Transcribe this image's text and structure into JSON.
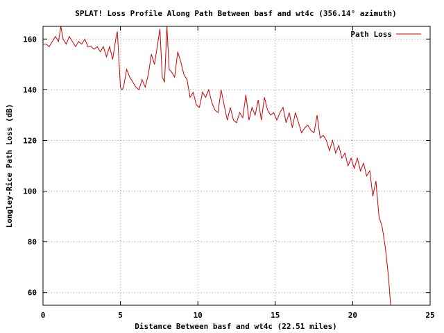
{
  "chart_data": {
    "type": "line",
    "title": "SPLAT! Loss Profile Along Path Between basf and wt4c (356.14° azimuth)",
    "xlabel": "Distance Between basf and wt4c (22.51 miles)",
    "ylabel": "Longley-Rice Path Loss (dB)",
    "xlim": [
      0,
      25
    ],
    "ylim": [
      55,
      165
    ],
    "xticks": [
      0,
      5,
      10,
      15,
      20,
      25
    ],
    "yticks": [
      60,
      80,
      100,
      120,
      140,
      160
    ],
    "xtick_labels": [
      "0",
      "5",
      "10",
      "15",
      "20",
      "25"
    ],
    "ytick_labels": [
      "60",
      "80",
      "100",
      "120",
      "140",
      "160"
    ],
    "grid": true,
    "legend_position": "top-right",
    "series": [
      {
        "name": "Path Loss",
        "color": "#cc0000",
        "x": [
          0.0,
          0.2,
          0.4,
          0.6,
          0.8,
          1.0,
          1.15,
          1.3,
          1.5,
          1.7,
          1.9,
          2.1,
          2.3,
          2.5,
          2.7,
          2.9,
          3.1,
          3.3,
          3.5,
          3.7,
          3.9,
          4.1,
          4.3,
          4.5,
          4.7,
          4.8,
          4.9,
          5.0,
          5.1,
          5.2,
          5.4,
          5.6,
          5.8,
          6.0,
          6.2,
          6.4,
          6.6,
          6.8,
          7.0,
          7.2,
          7.4,
          7.55,
          7.7,
          7.85,
          8.0,
          8.15,
          8.3,
          8.5,
          8.7,
          8.9,
          9.1,
          9.3,
          9.5,
          9.7,
          9.9,
          10.1,
          10.3,
          10.5,
          10.7,
          10.9,
          11.1,
          11.3,
          11.5,
          11.7,
          11.9,
          12.1,
          12.3,
          12.5,
          12.7,
          12.9,
          13.1,
          13.3,
          13.5,
          13.7,
          13.9,
          14.1,
          14.3,
          14.5,
          14.7,
          14.9,
          15.1,
          15.3,
          15.5,
          15.7,
          15.9,
          16.1,
          16.3,
          16.5,
          16.7,
          16.9,
          17.1,
          17.3,
          17.5,
          17.7,
          17.9,
          18.1,
          18.3,
          18.5,
          18.7,
          18.9,
          19.1,
          19.3,
          19.5,
          19.7,
          19.9,
          20.1,
          20.3,
          20.5,
          20.7,
          20.9,
          21.1,
          21.3,
          21.5,
          21.7,
          21.9,
          22.1,
          22.3,
          22.45
        ],
        "y": [
          158,
          158,
          157,
          159,
          161,
          159,
          165,
          160,
          158,
          161,
          159,
          157,
          159,
          158,
          160,
          157,
          157,
          156,
          157,
          155,
          157,
          153,
          157,
          152,
          160,
          163,
          152,
          141,
          140,
          141,
          148,
          145,
          143,
          141,
          140,
          144,
          141,
          146,
          154,
          150,
          158,
          164,
          145,
          143,
          165,
          148,
          147,
          145,
          155,
          151,
          146,
          144,
          137,
          139,
          134,
          133,
          139,
          137,
          140,
          135,
          132,
          131,
          140,
          134,
          128,
          133,
          128,
          127,
          131,
          129,
          138,
          128,
          133,
          130,
          136,
          128,
          137,
          132,
          130,
          131,
          128,
          131,
          133,
          127,
          131,
          125,
          131,
          127,
          123,
          125,
          126,
          124,
          123,
          130,
          121,
          122,
          120,
          116,
          120,
          115,
          118,
          113,
          115,
          110,
          113,
          109,
          113,
          108,
          111,
          106,
          108,
          98,
          104,
          90,
          86,
          78,
          67,
          55
        ]
      }
    ]
  }
}
